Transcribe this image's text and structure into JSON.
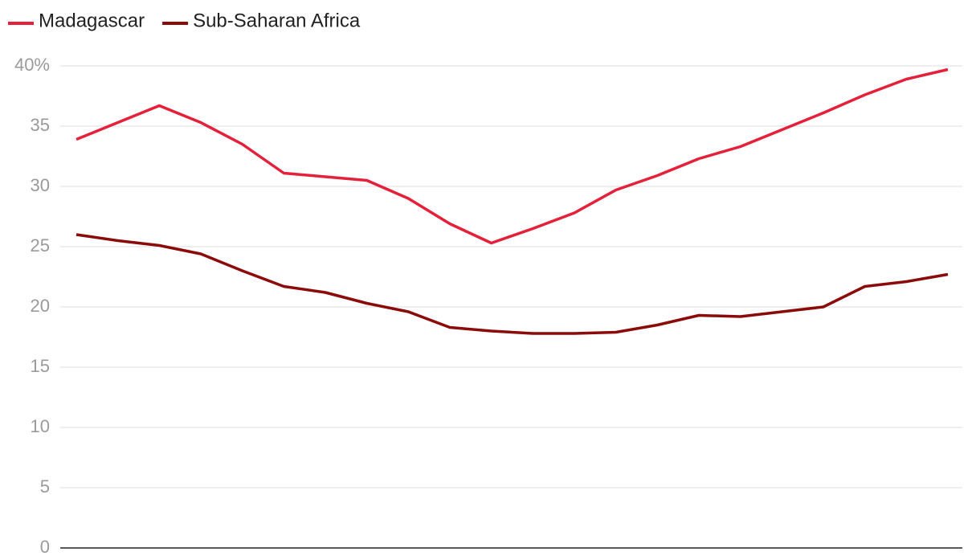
{
  "chart_data": {
    "type": "line",
    "categories": [
      null,
      null,
      null,
      null,
      null,
      null,
      null,
      null,
      null,
      null,
      null,
      null,
      null,
      null,
      null,
      null,
      null,
      null,
      null,
      null,
      null,
      null
    ],
    "series": [
      {
        "name": "Madagascar",
        "color": "#e3213a",
        "values": [
          33.9,
          35.3,
          36.7,
          35.3,
          33.5,
          31.1,
          30.8,
          30.5,
          29.0,
          26.9,
          25.3,
          26.5,
          27.8,
          29.7,
          30.9,
          32.3,
          33.3,
          34.7,
          36.1,
          37.6,
          38.9,
          39.7
        ]
      },
      {
        "name": "Sub-Saharan Africa",
        "color": "#8b0a0a",
        "values": [
          26.0,
          25.5,
          25.1,
          24.4,
          23.0,
          21.7,
          21.2,
          20.3,
          19.6,
          18.3,
          18.0,
          17.8,
          17.8,
          17.9,
          18.5,
          19.3,
          19.2,
          19.6,
          20.0,
          21.7,
          22.1,
          22.7
        ]
      }
    ],
    "ylim": [
      0,
      40
    ],
    "yticks": [
      0,
      5,
      10,
      15,
      20,
      25,
      30,
      35,
      {
        "value": 40,
        "label": "40%"
      }
    ],
    "grid": true,
    "legend": "top-left"
  }
}
